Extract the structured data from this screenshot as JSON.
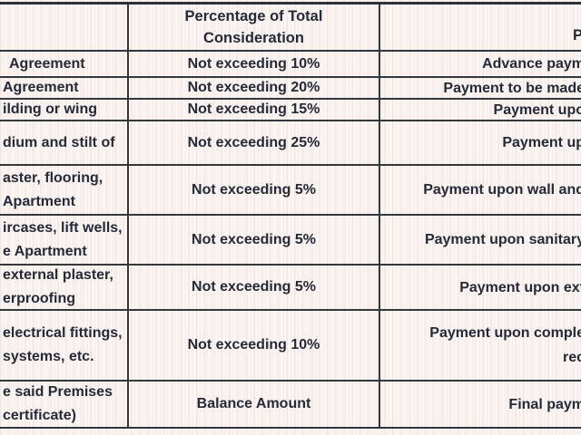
{
  "document": {
    "type": "payment-schedule-table",
    "colors": {
      "background": "#fbf4f0",
      "border": "#34373c",
      "text": "#242a38"
    },
    "table": {
      "header": {
        "stage_column_label": "",
        "percentage_column_line1": "Percentage of Total",
        "percentage_column_line2": "Consideration",
        "milestone_column_fragment": "P"
      },
      "rows": [
        {
          "stage_lines": [
            "Agreement"
          ],
          "percentage": "Not exceeding 10%",
          "milestone_lines": [
            "Advance paym"
          ]
        },
        {
          "stage_lines": [
            "Agreement"
          ],
          "percentage": "Not exceeding 20%",
          "milestone_lines": [
            "Payment to be made"
          ]
        },
        {
          "stage_lines": [
            "ilding or wing"
          ],
          "percentage": "Not exceeding 15%",
          "milestone_lines": [
            "Payment upo"
          ]
        },
        {
          "stage_lines": [
            "dium and stilt of"
          ],
          "percentage": "Not exceeding 25%",
          "milestone_lines": [
            "Payment up"
          ]
        },
        {
          "stage_lines": [
            "aster, flooring,",
            "Apartment"
          ],
          "percentage": "Not exceeding 5%",
          "milestone_lines": [
            "Payment upon wall and"
          ]
        },
        {
          "stage_lines": [
            "ircases, lift wells,",
            "e Apartment"
          ],
          "percentage": "Not exceeding 5%",
          "milestone_lines": [
            "Payment upon sanitary"
          ]
        },
        {
          "stage_lines": [
            "external plaster,",
            "erproofing"
          ],
          "percentage": "Not exceeding 5%",
          "milestone_lines": [
            "Payment upon ext"
          ]
        },
        {
          "stage_lines": [
            "electrical fittings,",
            "systems, etc."
          ],
          "percentage": "Not exceeding 10%",
          "milestone_lines": [
            "Payment upon comple",
            "rec"
          ]
        },
        {
          "stage_lines": [
            "e said Premises",
            "certificate)"
          ],
          "percentage": "Balance Amount",
          "milestone_lines": [
            "Final paym"
          ]
        }
      ]
    }
  }
}
